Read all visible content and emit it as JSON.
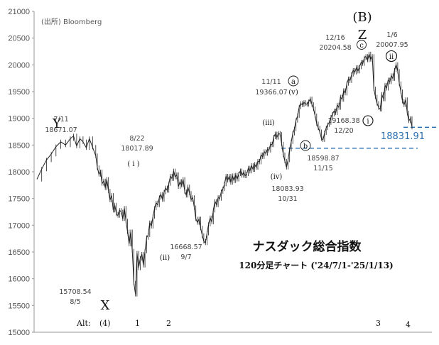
{
  "source": "(出所) Bloomberg",
  "title": "ナスダック総合指数",
  "subtitle": "120分足チャート ('24/7/1-'25/1/13)",
  "current_price": "18831.91",
  "colors": {
    "price_line": "#222222",
    "dashed": "#2a6fb0",
    "axis": "#999999"
  },
  "chart_data": {
    "type": "line",
    "ylim": [
      15000,
      21000
    ],
    "y_ticks": [
      15000,
      15500,
      16000,
      16500,
      17000,
      17500,
      18000,
      18500,
      19000,
      19500,
      20000,
      20500,
      21000
    ],
    "grid": false,
    "series": [
      {
        "points": [
          [
            0,
            17860
          ],
          [
            3,
            18050
          ],
          [
            6,
            18220
          ],
          [
            9,
            18330
          ],
          [
            12,
            18470
          ],
          [
            15,
            18560
          ],
          [
            18,
            18500
          ],
          [
            21,
            18620
          ],
          [
            23,
            18671
          ],
          [
            25,
            18480
          ],
          [
            27,
            18620
          ],
          [
            29,
            18560
          ],
          [
            31,
            18450
          ],
          [
            33,
            18620
          ],
          [
            35,
            18460
          ],
          [
            37,
            18300
          ],
          [
            38,
            18080
          ],
          [
            39,
            17950
          ],
          [
            40,
            18000
          ],
          [
            41,
            17780
          ],
          [
            42,
            17830
          ],
          [
            43,
            17700
          ],
          [
            44,
            17860
          ],
          [
            45,
            17640
          ],
          [
            46,
            17470
          ],
          [
            47,
            17560
          ],
          [
            48,
            17280
          ],
          [
            49,
            17380
          ],
          [
            50,
            17210
          ],
          [
            51,
            17180
          ],
          [
            52,
            17280
          ],
          [
            53,
            17250
          ],
          [
            54,
            17120
          ],
          [
            55,
            17320
          ],
          [
            56,
            17080
          ],
          [
            57,
            16880
          ],
          [
            58,
            16650
          ],
          [
            59,
            16880
          ],
          [
            60,
            16520
          ],
          [
            61,
            15920
          ],
          [
            62,
            15708
          ],
          [
            63,
            16480
          ],
          [
            64,
            16200
          ],
          [
            65,
            16380
          ],
          [
            66,
            16460
          ],
          [
            67,
            16250
          ],
          [
            68,
            16520
          ],
          [
            69,
            16770
          ],
          [
            70,
            16820
          ],
          [
            71,
            17050
          ],
          [
            72,
            16980
          ],
          [
            73,
            17160
          ],
          [
            74,
            17320
          ],
          [
            75,
            17420
          ],
          [
            76,
            17380
          ],
          [
            77,
            17520
          ],
          [
            78,
            17580
          ],
          [
            79,
            17480
          ],
          [
            80,
            17620
          ],
          [
            81,
            17700
          ],
          [
            82,
            17650
          ],
          [
            83,
            17780
          ],
          [
            84,
            17920
          ],
          [
            85,
            17870
          ],
          [
            86,
            18018
          ],
          [
            87,
            17900
          ],
          [
            88,
            17950
          ],
          [
            89,
            17720
          ],
          [
            90,
            17820
          ],
          [
            91,
            17750
          ],
          [
            92,
            17860
          ],
          [
            93,
            17630
          ],
          [
            94,
            17560
          ],
          [
            95,
            17720
          ],
          [
            96,
            17600
          ],
          [
            97,
            17480
          ],
          [
            98,
            17520
          ],
          [
            99,
            17330
          ],
          [
            100,
            17120
          ],
          [
            101,
            17050
          ],
          [
            102,
            17120
          ],
          [
            103,
            16950
          ],
          [
            104,
            16810
          ],
          [
            105,
            16700
          ],
          [
            106,
            16669
          ],
          [
            107,
            16850
          ],
          [
            108,
            17020
          ],
          [
            109,
            17140
          ],
          [
            110,
            17060
          ],
          [
            111,
            17280
          ],
          [
            112,
            17450
          ],
          [
            113,
            17380
          ],
          [
            114,
            17520
          ],
          [
            115,
            17500
          ],
          [
            116,
            17630
          ],
          [
            117,
            17680
          ],
          [
            118,
            17770
          ],
          [
            119,
            17920
          ],
          [
            120,
            17840
          ],
          [
            121,
            17920
          ],
          [
            122,
            17800
          ],
          [
            123,
            17930
          ],
          [
            124,
            17830
          ],
          [
            125,
            17940
          ],
          [
            126,
            17860
          ],
          [
            127,
            17960
          ],
          [
            128,
            18020
          ],
          [
            129,
            17930
          ],
          [
            130,
            17990
          ],
          [
            131,
            17920
          ],
          [
            132,
            17960
          ],
          [
            133,
            18070
          ],
          [
            134,
            18010
          ],
          [
            135,
            18120
          ],
          [
            136,
            18040
          ],
          [
            137,
            18140
          ],
          [
            138,
            18080
          ],
          [
            139,
            18200
          ],
          [
            140,
            18180
          ],
          [
            141,
            18320
          ],
          [
            142,
            18280
          ],
          [
            143,
            18380
          ],
          [
            144,
            18340
          ],
          [
            145,
            18420
          ],
          [
            146,
            18400
          ],
          [
            147,
            18520
          ],
          [
            148,
            18500
          ],
          [
            149,
            18650
          ],
          [
            150,
            18710
          ],
          [
            151,
            18640
          ],
          [
            152,
            18720
          ],
          [
            153,
            18700
          ],
          [
            154,
            18520
          ],
          [
            155,
            18320
          ],
          [
            156,
            18200
          ],
          [
            157,
            18084
          ],
          [
            158,
            18220
          ],
          [
            159,
            18420
          ],
          [
            160,
            18560
          ],
          [
            161,
            18720
          ],
          [
            162,
            18800
          ],
          [
            163,
            18960
          ],
          [
            164,
            19050
          ],
          [
            165,
            19210
          ],
          [
            166,
            19280
          ],
          [
            167,
            19250
          ],
          [
            168,
            19300
          ],
          [
            169,
            19270
          ],
          [
            170,
            19260
          ],
          [
            171,
            19310
          ],
          [
            172,
            19366
          ],
          [
            173,
            19260
          ],
          [
            174,
            19180
          ],
          [
            175,
            19050
          ],
          [
            176,
            18900
          ],
          [
            177,
            18820
          ],
          [
            178,
            18750
          ],
          [
            179,
            18620
          ],
          [
            180,
            18599
          ],
          [
            181,
            18730
          ],
          [
            182,
            18820
          ],
          [
            183,
            18880
          ],
          [
            184,
            18920
          ],
          [
            185,
            19020
          ],
          [
            186,
            19080
          ],
          [
            187,
            19140
          ],
          [
            188,
            19100
          ],
          [
            189,
            19250
          ],
          [
            190,
            19200
          ],
          [
            191,
            19400
          ],
          [
            192,
            19350
          ],
          [
            193,
            19520
          ],
          [
            194,
            19470
          ],
          [
            195,
            19650
          ],
          [
            196,
            19740
          ],
          [
            197,
            19700
          ],
          [
            198,
            19820
          ],
          [
            199,
            19900
          ],
          [
            200,
            19860
          ],
          [
            201,
            19950
          ],
          [
            202,
            19880
          ],
          [
            203,
            19960
          ],
          [
            204,
            20050
          ],
          [
            205,
            20020
          ],
          [
            206,
            20130
          ],
          [
            207,
            20160
          ],
          [
            208,
            20090
          ],
          [
            209,
            20205
          ],
          [
            210,
            20100
          ],
          [
            211,
            20160
          ],
          [
            212,
            19550
          ],
          [
            213,
            19400
          ],
          [
            214,
            19280
          ],
          [
            215,
            19200
          ],
          [
            216,
            19168
          ],
          [
            217,
            19450
          ],
          [
            218,
            19360
          ],
          [
            219,
            19620
          ],
          [
            220,
            19560
          ],
          [
            221,
            19720
          ],
          [
            222,
            19680
          ],
          [
            223,
            19800
          ],
          [
            224,
            19740
          ],
          [
            225,
            19900
          ],
          [
            226,
            20008
          ],
          [
            227,
            19880
          ],
          [
            228,
            19650
          ],
          [
            229,
            19500
          ],
          [
            230,
            19320
          ],
          [
            231,
            19250
          ],
          [
            232,
            19350
          ],
          [
            233,
            19100
          ],
          [
            234,
            18950
          ],
          [
            235,
            19000
          ],
          [
            236,
            18832
          ]
        ]
      }
    ],
    "annotations": [
      {
        "x": 23,
        "y": 18671,
        "date": "7/11",
        "value": "18671.07",
        "wave": "Y"
      },
      {
        "x": 62,
        "y": 15708,
        "date": "8/5",
        "value": "15708.54",
        "wave": "X"
      },
      {
        "x": 86,
        "y": 18018,
        "date": "8/22",
        "value": "18017.89",
        "wave": "( i )"
      },
      {
        "x": 106,
        "y": 16669,
        "date": "9/7",
        "value": "16668.57",
        "wave": "(ii)"
      },
      {
        "x": 151,
        "y": 18750,
        "wave": "(iii)"
      },
      {
        "x": 157,
        "y": 18084,
        "date": "10/31",
        "value": "18083.93",
        "wave": "(iv)"
      },
      {
        "x": 172,
        "y": 19366,
        "date": "11/11",
        "value": "19366.07",
        "wave": "(v)",
        "circled": "a"
      },
      {
        "x": 180,
        "y": 18599,
        "date": "11/15",
        "value": "18598.87",
        "circled": "b"
      },
      {
        "x": 209,
        "y": 20205,
        "date": "12/16",
        "value": "20204.58",
        "circled": "c",
        "wave": "(B)",
        "wave2": "Z"
      },
      {
        "x": 216,
        "y": 19168,
        "date": "12/20",
        "value": "19168.38",
        "circled": "i"
      },
      {
        "x": 226,
        "y": 20008,
        "date": "1/6",
        "value": "20007.95",
        "circled": "ii"
      }
    ],
    "reference_lines": [
      {
        "y": 18440,
        "style": "dashed"
      },
      {
        "y": 18831.91,
        "style": "dashed"
      }
    ],
    "alt_labels": [
      "Alt:",
      "(4)",
      "1",
      "2",
      "3",
      "4"
    ]
  }
}
